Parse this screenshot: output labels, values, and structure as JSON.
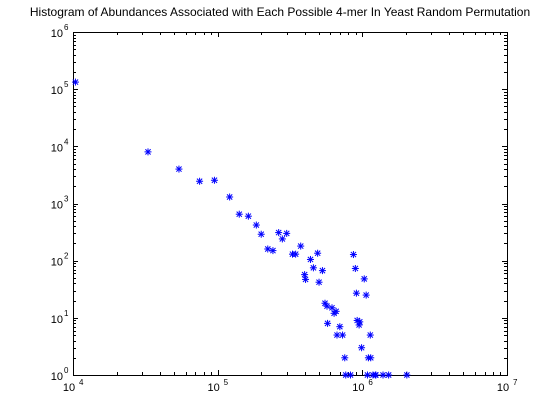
{
  "chart_data": {
    "type": "scatter",
    "title": "Histogram of Abundances Associated with Each Possible 4-mer In Yeast Random Permutation",
    "xlabel": "",
    "ylabel": "",
    "x_scale": "log",
    "y_scale": "log",
    "xlim": [
      10000,
      10000000
    ],
    "ylim": [
      1,
      1000000
    ],
    "x_ticks": [
      {
        "base": "10",
        "exp": "4"
      },
      {
        "base": "10",
        "exp": "5"
      },
      {
        "base": "10",
        "exp": "6"
      },
      {
        "base": "10",
        "exp": "7"
      }
    ],
    "y_ticks": [
      {
        "base": "10",
        "exp": "0"
      },
      {
        "base": "10",
        "exp": "1"
      },
      {
        "base": "10",
        "exp": "2"
      },
      {
        "base": "10",
        "exp": "3"
      },
      {
        "base": "10",
        "exp": "4"
      },
      {
        "base": "10",
        "exp": "5"
      },
      {
        "base": "10",
        "exp": "6"
      }
    ],
    "grid": false,
    "marker": "*",
    "marker_color": "#0000ff",
    "series": [
      {
        "points": [
          [
            10400,
            133000
          ],
          [
            33000,
            8000
          ],
          [
            54000,
            4000
          ],
          [
            75000,
            2450
          ],
          [
            95000,
            2550
          ],
          [
            121000,
            1300
          ],
          [
            141000,
            650
          ],
          [
            163000,
            600
          ],
          [
            185000,
            420
          ],
          [
            200000,
            290
          ],
          [
            222000,
            160
          ],
          [
            241000,
            150
          ],
          [
            264000,
            310
          ],
          [
            280000,
            240
          ],
          [
            300000,
            300
          ],
          [
            329000,
            130
          ],
          [
            346000,
            130
          ],
          [
            375000,
            180
          ],
          [
            399000,
            57
          ],
          [
            405000,
            47
          ],
          [
            438000,
            105
          ],
          [
            459000,
            75
          ],
          [
            491000,
            135
          ],
          [
            502000,
            42
          ],
          [
            530000,
            67
          ],
          [
            552000,
            18
          ],
          [
            570000,
            16
          ],
          [
            575000,
            8
          ],
          [
            617000,
            15
          ],
          [
            638000,
            12
          ],
          [
            659000,
            13
          ],
          [
            668000,
            5
          ],
          [
            699000,
            7
          ],
          [
            730000,
            5
          ],
          [
            756000,
            2
          ],
          [
            768000,
            1
          ],
          [
            828000,
            1
          ],
          [
            868000,
            128
          ],
          [
            895000,
            73
          ],
          [
            910000,
            27
          ],
          [
            921000,
            9
          ],
          [
            950000,
            7.5
          ],
          [
            960000,
            8.5
          ],
          [
            988000,
            3
          ],
          [
            1031000,
            48
          ],
          [
            1063000,
            25
          ],
          [
            1085000,
            1
          ],
          [
            1101000,
            2
          ],
          [
            1135000,
            5
          ],
          [
            1143000,
            2
          ],
          [
            1184000,
            1
          ],
          [
            1231000,
            1
          ],
          [
            1240000,
            1
          ],
          [
            1390000,
            1
          ],
          [
            1520000,
            1
          ],
          [
            2031000,
            1
          ]
        ]
      }
    ]
  }
}
